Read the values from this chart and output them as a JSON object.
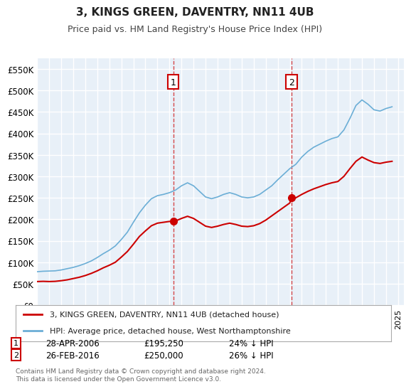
{
  "title": "3, KINGS GREEN, DAVENTRY, NN11 4UB",
  "subtitle": "Price paid vs. HM Land Registry's House Price Index (HPI)",
  "xlabel": "",
  "ylabel": "",
  "ylim": [
    0,
    575000
  ],
  "yticks": [
    0,
    50000,
    100000,
    150000,
    200000,
    250000,
    300000,
    350000,
    400000,
    450000,
    500000,
    550000
  ],
  "ytick_labels": [
    "£0",
    "£50K",
    "£100K",
    "£150K",
    "£200K",
    "£250K",
    "£300K",
    "£350K",
    "£400K",
    "£450K",
    "£500K",
    "£550K"
  ],
  "background_color": "#ffffff",
  "plot_bg_color": "#e8f0f8",
  "grid_color": "#ffffff",
  "hpi_color": "#6baed6",
  "price_color": "#cc0000",
  "marker1_date": 2006.32,
  "marker1_price": 195250,
  "marker1_label": "1",
  "marker1_text": "28-APR-2006    £195,250    24% ↓ HPI",
  "marker2_date": 2016.15,
  "marker2_price": 250000,
  "marker2_label": "2",
  "marker2_text": "26-FEB-2016    £250,000    26% ↓ HPI",
  "legend_line1": "3, KINGS GREEN, DAVENTRY, NN11 4UB (detached house)",
  "legend_line2": "HPI: Average price, detached house, West Northamptonshire",
  "footer": "Contains HM Land Registry data © Crown copyright and database right 2024.\nThis data is licensed under the Open Government Licence v3.0.",
  "xmin": 1995,
  "xmax": 2025.5
}
